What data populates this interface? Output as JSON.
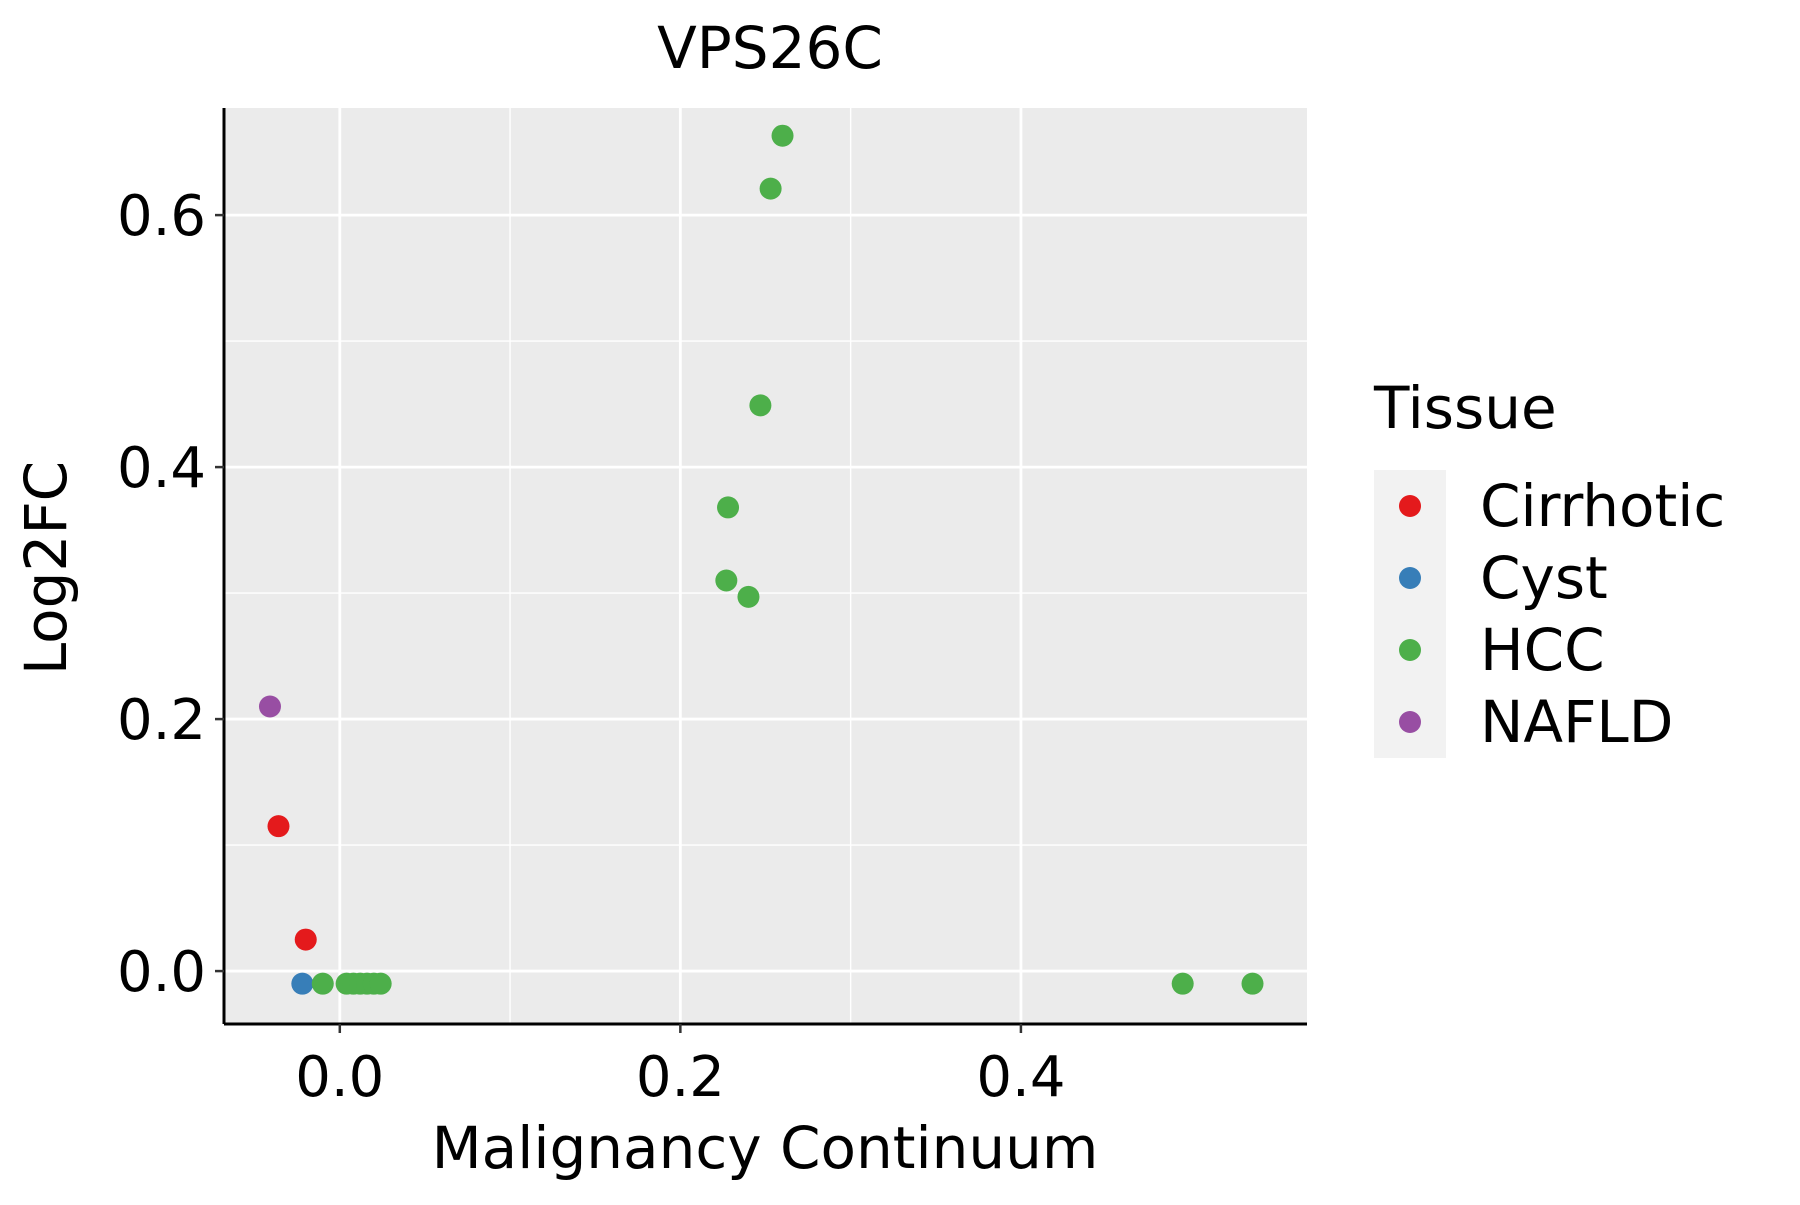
{
  "chart_data": {
    "type": "scatter",
    "title": "VPS26C",
    "xlabel": "Malignancy Continuum",
    "ylabel": "Log2FC",
    "xlim": [
      -0.068,
      0.568
    ],
    "ylim": [
      -0.042,
      0.685
    ],
    "x_ticks": [
      0.0,
      0.2,
      0.4
    ],
    "x_tick_labels": [
      "0.0",
      "0.2",
      "0.4"
    ],
    "y_ticks": [
      0.0,
      0.2,
      0.4,
      0.6
    ],
    "y_tick_labels": [
      "0.0",
      "0.2",
      "0.4",
      "0.6"
    ],
    "grid": true,
    "legend": {
      "title": "Tissue",
      "position": "right",
      "entries": [
        {
          "name": "Cirrhotic",
          "color": "#E41A1C"
        },
        {
          "name": "Cyst",
          "color": "#377EB8"
        },
        {
          "name": "HCC",
          "color": "#4DAF4A"
        },
        {
          "name": "NAFLD",
          "color": "#984EA3"
        }
      ]
    },
    "series": [
      {
        "name": "Cirrhotic",
        "color": "#E41A1C",
        "points": [
          {
            "x": -0.036,
            "y": 0.115
          },
          {
            "x": -0.02,
            "y": 0.025
          }
        ]
      },
      {
        "name": "Cyst",
        "color": "#377EB8",
        "points": [
          {
            "x": -0.022,
            "y": -0.01
          }
        ]
      },
      {
        "name": "HCC",
        "color": "#4DAF4A",
        "points": [
          {
            "x": -0.01,
            "y": -0.01
          },
          {
            "x": 0.004,
            "y": -0.01
          },
          {
            "x": 0.008,
            "y": -0.01
          },
          {
            "x": 0.012,
            "y": -0.01
          },
          {
            "x": 0.016,
            "y": -0.01
          },
          {
            "x": 0.02,
            "y": -0.01
          },
          {
            "x": 0.024,
            "y": -0.01
          },
          {
            "x": 0.227,
            "y": 0.31
          },
          {
            "x": 0.228,
            "y": 0.368
          },
          {
            "x": 0.24,
            "y": 0.297
          },
          {
            "x": 0.247,
            "y": 0.449
          },
          {
            "x": 0.253,
            "y": 0.621
          },
          {
            "x": 0.26,
            "y": 0.663
          },
          {
            "x": 0.495,
            "y": -0.01
          },
          {
            "x": 0.536,
            "y": -0.01
          }
        ]
      },
      {
        "name": "NAFLD",
        "color": "#984EA3",
        "points": [
          {
            "x": -0.041,
            "y": 0.21
          }
        ]
      }
    ]
  }
}
